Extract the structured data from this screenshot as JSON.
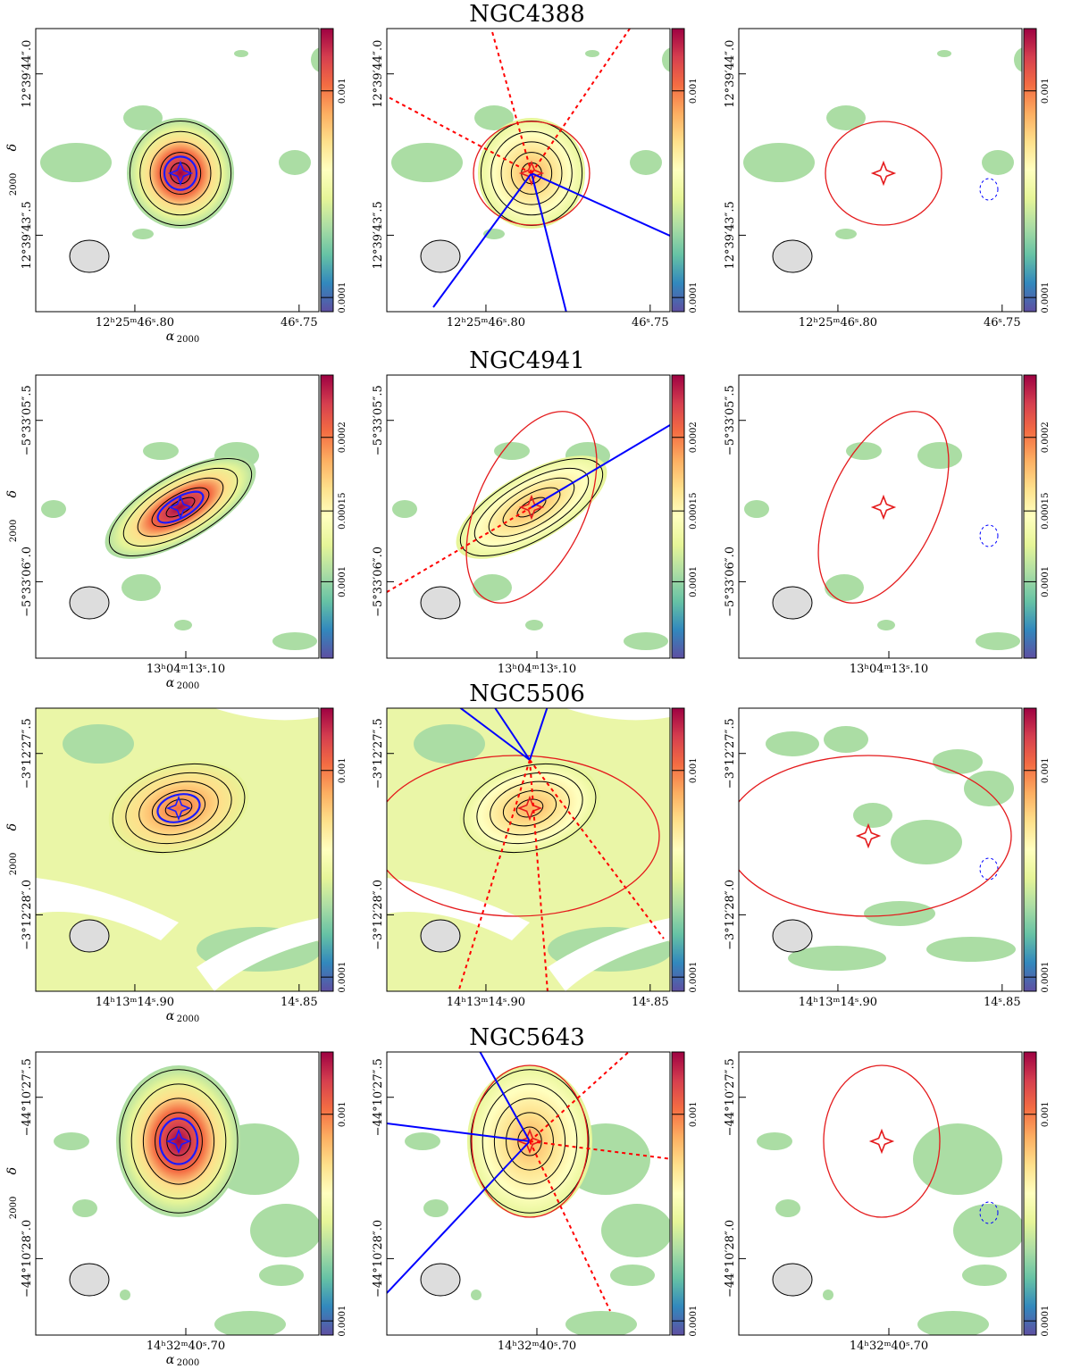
{
  "figure": {
    "galaxies": [
      {
        "name": "NGC4388",
        "ra_ticks": [
          "12h25m46.80",
          "46.75"
        ],
        "ra_ticks_display": [
          "12ʰ25ᵐ46ˢ.80",
          "46ˢ.75"
        ],
        "dec_ticks": [
          "12°39'44.0",
          "12°39'43.5"
        ],
        "dec_ticks_display": [
          "12°39′44″.0",
          "12°39′43″.5"
        ],
        "colorbar_ticks": [
          "0.001",
          "0.0001"
        ],
        "show_ra_axis_label": true
      },
      {
        "name": "NGC4941",
        "ra_ticks": [
          "13h04m13.10"
        ],
        "ra_ticks_display": [
          "13ʰ04ᵐ13ˢ.10"
        ],
        "dec_ticks": [
          "-5°33'05.5",
          "-5°33'06.0"
        ],
        "dec_ticks_display": [
          "−5°33′05″.5",
          "−5°33′06″.0"
        ],
        "colorbar_ticks": [
          "0.0002",
          "0.00015",
          "0.0001"
        ],
        "show_ra_axis_label": true
      },
      {
        "name": "NGC5506",
        "ra_ticks": [
          "14h13m14.90",
          "14.85"
        ],
        "ra_ticks_display": [
          "14ʰ13ᵐ14ˢ.90",
          "14ˢ.85"
        ],
        "dec_ticks": [
          "-3°12'27.5",
          "-3°12'28.0"
        ],
        "dec_ticks_display": [
          "−3°12′27″.5",
          "−3°12′28″.0"
        ],
        "colorbar_ticks": [
          "0.001",
          "0.0001"
        ],
        "show_ra_axis_label": true
      },
      {
        "name": "NGC5643",
        "ra_ticks": [
          "14h32m40.70"
        ],
        "ra_ticks_display": [
          "14ʰ32ᵐ40ˢ.70"
        ],
        "dec_ticks": [
          "-44°10'27.5",
          "-44°10'28.0"
        ],
        "dec_ticks_display": [
          "−44°10′27″.5",
          "−44°10′28″.0"
        ],
        "colorbar_ticks": [
          "0.001",
          "0.0001"
        ],
        "show_ra_axis_label": true
      }
    ],
    "axis_labels": {
      "ra": "α",
      "ra_sub": "2000",
      "dec": "δ",
      "dec_sub": "2000"
    },
    "panel_roles": [
      "observed",
      "model",
      "residual"
    ],
    "colors": {
      "colormap": [
        "#5e4fa2",
        "#3288bd",
        "#66c2a5",
        "#abdda4",
        "#e6f598",
        "#ffffbf",
        "#fee08b",
        "#fdae61",
        "#f46d43",
        "#d53e4f",
        "#9e0142"
      ],
      "contour": "#000000",
      "peak_contour": "#1a1aff",
      "model_ellipse": "#e41a1c",
      "bicone_solid": "#0000ff",
      "bicone_dashed": "#ff0000",
      "beam": "#dddddd"
    }
  }
}
